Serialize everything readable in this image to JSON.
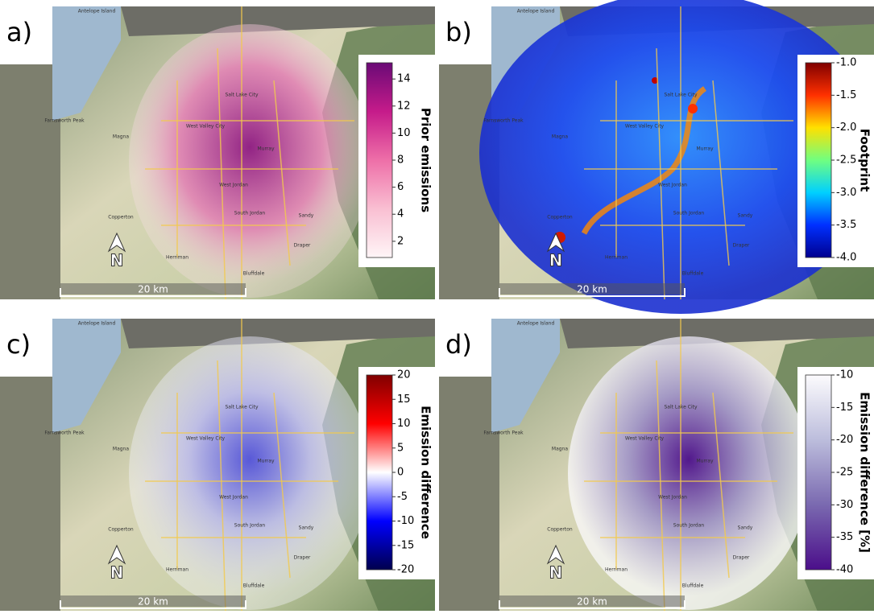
{
  "places": [
    "Antelope Island",
    "Farnsworth Peak",
    "Magna",
    "West Valley City",
    "Salt Lake City",
    "Murray",
    "West Jordan",
    "South Jordan",
    "Sandy",
    "Draper",
    "Copperton",
    "Herriman",
    "Bluffdale"
  ],
  "panels": [
    {
      "label": "a)",
      "colorbar": {
        "title": "Prior emissions",
        "lim": [
          0.8,
          15.2
        ],
        "ticks": [
          2,
          4,
          6,
          8,
          10,
          12,
          14
        ],
        "colors": [
          "#fff5f7",
          "#f9bfd2",
          "#ee6fa8",
          "#c51b8a",
          "#6a0a76"
        ]
      },
      "scale": "20 km",
      "north": "N"
    },
    {
      "label": "b)",
      "colorbar": {
        "title": "Footprint",
        "lim": [
          -4,
          -1
        ],
        "ticks": [
          {
            "value": -1,
            "label": "-1.0"
          },
          {
            "value": -1.5,
            "label": "-1.5"
          },
          {
            "value": -2,
            "label": "-2.0"
          },
          {
            "value": -2.5,
            "label": "-2.5"
          },
          {
            "value": -3,
            "label": "-3.0"
          },
          {
            "value": -3.5,
            "label": "-3.5"
          },
          {
            "value": -4,
            "label": "-4.0"
          }
        ],
        "colors": [
          "#00008f",
          "#0030ff",
          "#00d0ff",
          "#70ff80",
          "#ffe000",
          "#ff3000",
          "#800000"
        ]
      },
      "scale": "20 km",
      "north": "N"
    },
    {
      "label": "c)",
      "colorbar": {
        "title": "Emission difference",
        "lim": [
          -20,
          20
        ],
        "ticks": [
          -20,
          -15,
          -10,
          -5,
          0,
          5,
          10,
          15,
          20
        ],
        "colors": [
          "#00004d",
          "#0000ff",
          "#ffffff",
          "#ff0000",
          "#800000"
        ]
      },
      "scale": "20 km",
      "north": "N"
    },
    {
      "label": "d)",
      "colorbar": {
        "title": "Emission difference [%]",
        "lim": [
          -40,
          -10
        ],
        "ticks": [
          -40,
          -35,
          -30,
          -25,
          -20,
          -15,
          -10
        ],
        "colors": [
          "#4b0e8a",
          "#7a69b0",
          "#bcbddc",
          "#fcfbfd"
        ]
      },
      "scale": "20 km",
      "north": "N"
    }
  ]
}
